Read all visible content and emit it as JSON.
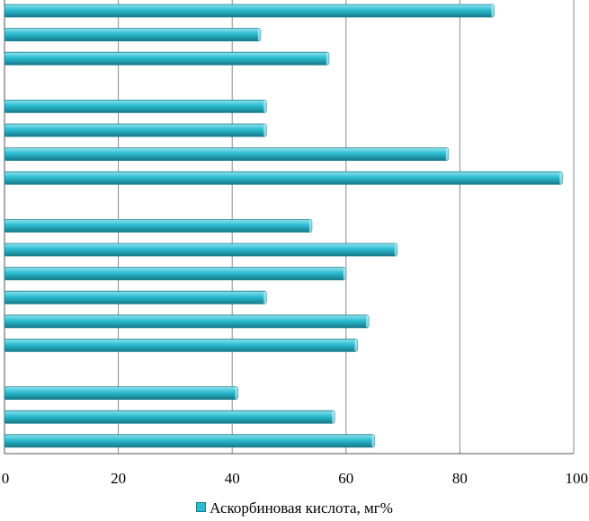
{
  "chart_data": {
    "type": "bar",
    "orientation": "horizontal",
    "title": "",
    "xlabel": "",
    "ylabel": "",
    "xlim": [
      0,
      100
    ],
    "ticks": [
      0,
      20,
      40,
      60,
      80,
      100
    ],
    "tick_labels": [
      "0",
      "20",
      "40",
      "60",
      "80",
      "100"
    ],
    "grid": true,
    "legend_position": "bottom",
    "series": [
      {
        "name": "Аскорбиновая кислота, мг%",
        "color": "#2bbcd0",
        "values": [
          86,
          45,
          57,
          null,
          46,
          46,
          78,
          98,
          null,
          54,
          69,
          60,
          46,
          64,
          62,
          null,
          41,
          58,
          65
        ]
      }
    ]
  }
}
